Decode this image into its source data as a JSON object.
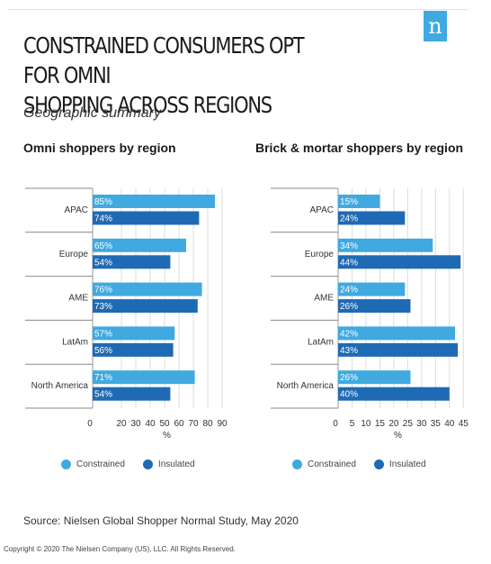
{
  "title": "CONSTRAINED CONSUMERS OPT FOR OMNI\nSHOPPING ACROSS REGIONS",
  "subtitle": "Geographic summary",
  "logo_letter": "n",
  "source": "Source: Nielsen Global Shopper Normal Study, May 2020",
  "copyright": "Copyright © 2020 The Nielsen Company (US), LLC. All Rights Reserved.",
  "colors": {
    "constrained": "#3fa9e0",
    "insulated": "#1f6ab4"
  },
  "chart_data": [
    {
      "type": "bar",
      "orientation": "horizontal",
      "title": "Omni shoppers by region",
      "xlabel": "%",
      "categories": [
        "APAC",
        "Europe",
        "AME",
        "LatAm",
        "North America"
      ],
      "series": [
        {
          "name": "Constrained",
          "values": [
            85,
            65,
            76,
            57,
            71
          ],
          "labels": [
            "85%",
            "65%",
            "76%",
            "57%",
            "71%"
          ]
        },
        {
          "name": "Insulated",
          "values": [
            74,
            54,
            73,
            56,
            54
          ],
          "labels": [
            "74%",
            "54%",
            "73%",
            "56%",
            "54%"
          ]
        }
      ],
      "xticks": [
        "0",
        "20",
        "30",
        "40",
        "50",
        "60",
        "70",
        "80",
        "90"
      ],
      "xlim": [
        0,
        95
      ],
      "grid": true,
      "legend": "bottom"
    },
    {
      "type": "bar",
      "orientation": "horizontal",
      "title": "Brick & mortar shoppers by region",
      "xlabel": "%",
      "categories": [
        "APAC",
        "Europe",
        "AME",
        "LatAm",
        "North America"
      ],
      "series": [
        {
          "name": "Constrained",
          "values": [
            15,
            34,
            24,
            42,
            26
          ],
          "labels": [
            "15%",
            "34%",
            "24%",
            "42%",
            "26%"
          ]
        },
        {
          "name": "Insulated",
          "values": [
            24,
            44,
            26,
            43,
            40
          ],
          "labels": [
            "24%",
            "44%",
            "26%",
            "43%",
            "40%"
          ]
        }
      ],
      "xticks": [
        "0",
        "5",
        "10",
        "15",
        "20",
        "25",
        "30",
        "35",
        "40",
        "45"
      ],
      "xlim": [
        0,
        47.5
      ],
      "grid": true,
      "legend": "bottom"
    }
  ]
}
